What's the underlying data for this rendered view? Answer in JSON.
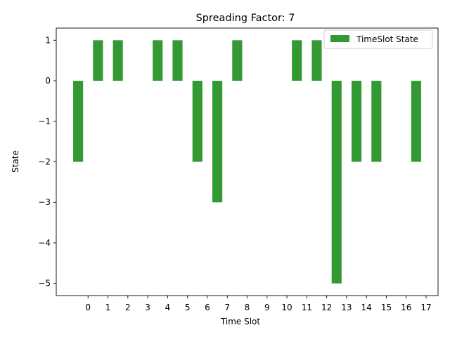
{
  "chart_data": {
    "type": "bar",
    "title": "Spreading Factor: 7",
    "xlabel": "Time Slot",
    "ylabel": "State",
    "bar_positions": [
      -0.5,
      0.5,
      1.5,
      2.5,
      3.5,
      4.5,
      5.5,
      6.5,
      7.5,
      8.5,
      9.5,
      10.5,
      11.5,
      12.5,
      13.5,
      14.5,
      15.5,
      16.5
    ],
    "values": [
      -2,
      1,
      1,
      0,
      1,
      1,
      -2,
      -3,
      1,
      0,
      0,
      1,
      1,
      -5,
      -2,
      -2,
      0,
      -2
    ],
    "bar_width": 0.5,
    "x_ticks": [
      0,
      1,
      2,
      3,
      4,
      5,
      6,
      7,
      8,
      9,
      10,
      11,
      12,
      13,
      14,
      15,
      16,
      17
    ],
    "x_tick_labels": [
      "0",
      "1",
      "2",
      "3",
      "4",
      "5",
      "6",
      "7",
      "8",
      "9",
      "10",
      "11",
      "12",
      "13",
      "14",
      "15",
      "16",
      "17"
    ],
    "y_ticks": [
      1,
      0,
      -1,
      -2,
      -3,
      -4,
      -5
    ],
    "y_tick_labels": [
      "1",
      "0",
      "−1",
      "−2",
      "−3",
      "−4",
      "−5"
    ],
    "xlim": [
      -1.6,
      17.6
    ],
    "ylim": [
      -5.3,
      1.3
    ],
    "grid": false,
    "legend": {
      "position": "top-right",
      "label": "TimeSlot State"
    },
    "colors": {
      "bar": "#339933",
      "axes": "#000000",
      "legend_border": "#cccccc"
    }
  }
}
